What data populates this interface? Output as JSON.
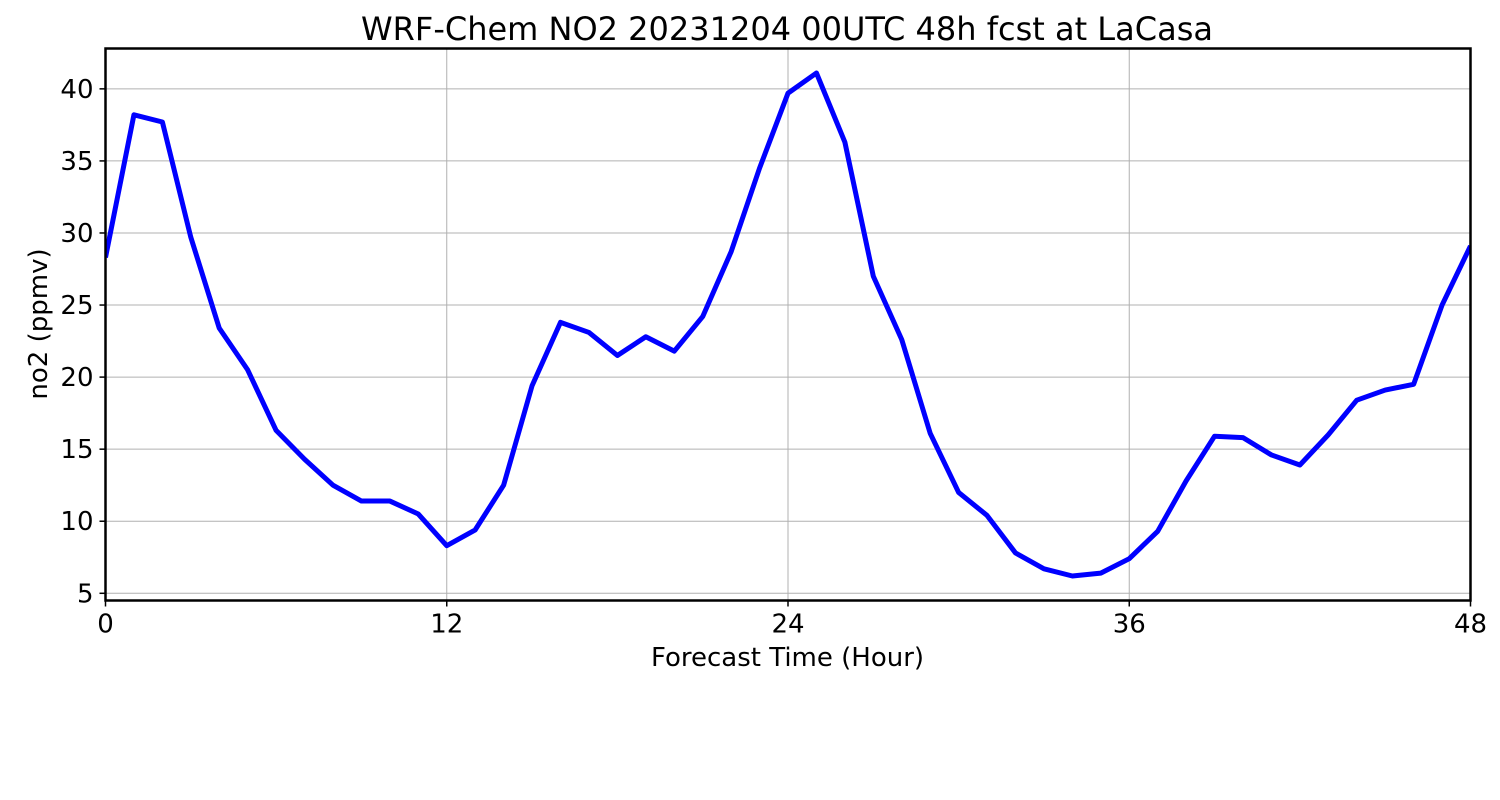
{
  "chart_data": {
    "type": "line",
    "title": "WRF-Chem NO2  20231204 00UTC 48h fcst at LaCasa",
    "xlabel": "Forecast Time (Hour)",
    "ylabel": "no2  (ppmv)",
    "xlim": [
      0,
      48
    ],
    "ylim": [
      4.5,
      42.8
    ],
    "xticks": [
      0,
      12,
      24,
      36,
      48
    ],
    "xtick_labels": [
      "0",
      "12",
      "24",
      "36",
      "48"
    ],
    "yticks": [
      5,
      10,
      15,
      20,
      25,
      30,
      35,
      40
    ],
    "ytick_labels": [
      "5",
      "10",
      "15",
      "20",
      "25",
      "30",
      "35",
      "40"
    ],
    "grid": true,
    "series": [
      {
        "color": "#0000ff",
        "x": [
          0,
          1,
          2,
          3,
          4,
          5,
          6,
          7,
          8,
          9,
          10,
          11,
          12,
          13,
          14,
          15,
          16,
          17,
          18,
          19,
          20,
          21,
          22,
          23,
          24,
          25,
          26,
          27,
          28,
          29,
          30,
          31,
          32,
          33,
          34,
          35,
          36,
          37,
          38,
          39,
          40,
          41,
          42,
          43,
          44,
          45,
          46,
          47,
          48
        ],
        "values": [
          28.3,
          38.2,
          37.7,
          29.7,
          23.4,
          20.5,
          16.3,
          14.3,
          12.5,
          11.4,
          11.4,
          10.5,
          8.3,
          9.4,
          12.5,
          19.4,
          23.8,
          23.1,
          21.5,
          22.8,
          21.8,
          24.2,
          28.7,
          34.5,
          39.7,
          41.1,
          36.3,
          27.0,
          22.6,
          16.1,
          12.0,
          10.4,
          7.8,
          6.7,
          6.2,
          6.4,
          7.4,
          9.3,
          12.8,
          15.9,
          15.8,
          14.6,
          13.9,
          16.0,
          18.4,
          19.1,
          19.5,
          25.0,
          29.1
        ]
      }
    ]
  }
}
